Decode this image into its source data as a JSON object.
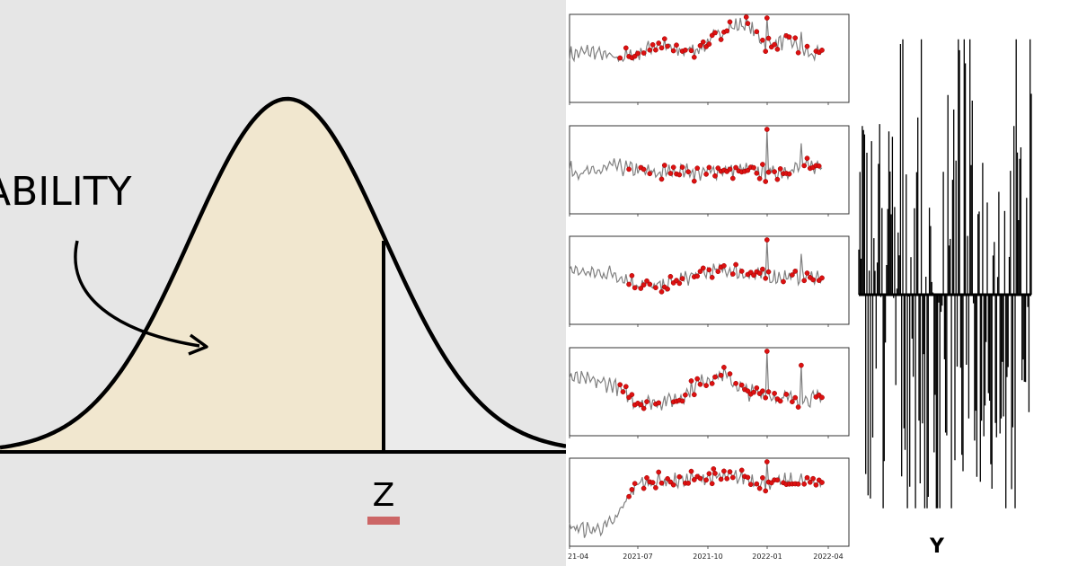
{
  "left": {
    "label_probability": "ABILITY",
    "label_z": "Z",
    "colors": {
      "area": "#f1e7cf",
      "tail": "#ebebeb",
      "curve": "#000000",
      "accent": "#cc6666",
      "bg": "#e6e6e6"
    }
  },
  "chart_data": [
    {
      "type": "line",
      "panel": "stacked time series",
      "x_tick_labels": [
        "21-04",
        "2021-07",
        "2021-10",
        "2022-01",
        "2022-04"
      ],
      "x_ticks": [
        "2021-04",
        "2021-07",
        "2021-10",
        "2022-01",
        "2022-04"
      ],
      "xlim": [
        "2021-04",
        "2022-04"
      ],
      "series_count": 5,
      "series_color": "#808080",
      "marker_color": "#dd1111",
      "spike_date": "2022-01",
      "series": [
        {
          "profile": [
            0.55,
            0.6,
            0.5,
            0.55,
            0.7,
            0.6,
            0.65,
            0.9,
            1.0,
            0.7,
            0.75,
            0.55
          ],
          "marker_from": "2021-06"
        },
        {
          "profile": [
            0.5,
            0.45,
            0.55,
            0.5,
            0.45,
            0.5,
            0.45,
            0.5,
            0.5,
            0.45,
            0.5,
            0.55
          ],
          "marker_from": "2021-07"
        },
        {
          "profile": [
            0.65,
            0.6,
            0.6,
            0.45,
            0.4,
            0.5,
            0.6,
            0.65,
            0.6,
            0.55,
            0.55,
            0.55
          ],
          "marker_from": "2021-07"
        },
        {
          "profile": [
            0.7,
            0.65,
            0.6,
            0.35,
            0.35,
            0.4,
            0.65,
            0.75,
            0.5,
            0.45,
            0.4,
            0.4
          ],
          "marker_from": "2021-06"
        },
        {
          "profile": [
            0.15,
            0.1,
            0.2,
            0.75,
            0.8,
            0.8,
            0.85,
            0.85,
            0.85,
            0.75,
            0.8,
            0.8
          ],
          "marker_from": "2021-07"
        }
      ]
    },
    {
      "type": "bar",
      "panel": "residual impulse plot",
      "xlabel": "Y",
      "baseline": 0,
      "ylim": [
        -1,
        1
      ],
      "count": 150,
      "color": "#000000"
    }
  ]
}
